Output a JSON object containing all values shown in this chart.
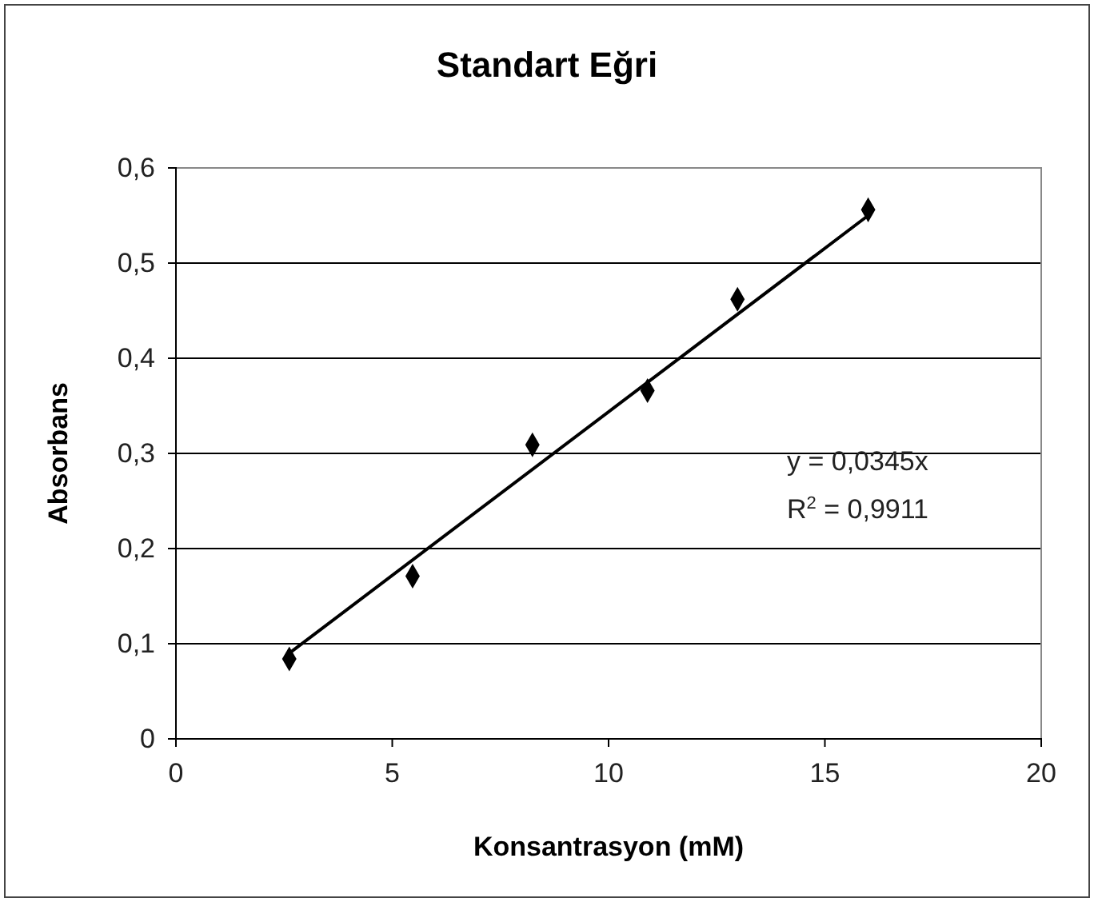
{
  "chart_data": {
    "type": "scatter",
    "title": "Standart Eğri",
    "xlabel": "Konsantrasyon (mM)",
    "ylabel": "Absorbans",
    "xlim": [
      0,
      20
    ],
    "xticks": [
      0,
      5,
      10,
      15,
      20
    ],
    "ylim": [
      0,
      0.6
    ],
    "yticks": [
      0,
      {
        "value": 0.1,
        "label": "0,1"
      },
      {
        "value": 0.2,
        "label": "0,2"
      },
      {
        "value": 0.3,
        "label": "0,3"
      },
      {
        "value": 0.4,
        "label": "0,4"
      },
      {
        "value": 0.5,
        "label": "0,5"
      },
      {
        "value": 0.6,
        "label": "0,6"
      }
    ],
    "grid": "y",
    "marker": "diamond",
    "series": [
      {
        "color": "#000000",
        "x": [
          2.62,
          5.47,
          8.24,
          10.9,
          12.98,
          16.0
        ],
        "values": [
          0.084,
          0.171,
          0.309,
          0.366,
          0.462,
          0.556
        ]
      },
      {
        "type": "line",
        "color": "#000000",
        "line_style": "solid",
        "marker": "none",
        "x": [
          2.62,
          16.0
        ],
        "values": [
          0.09,
          0.55
        ]
      }
    ],
    "annotations": [
      "y = 0,0345x",
      "R$^{2}$ = 0,9911"
    ]
  }
}
